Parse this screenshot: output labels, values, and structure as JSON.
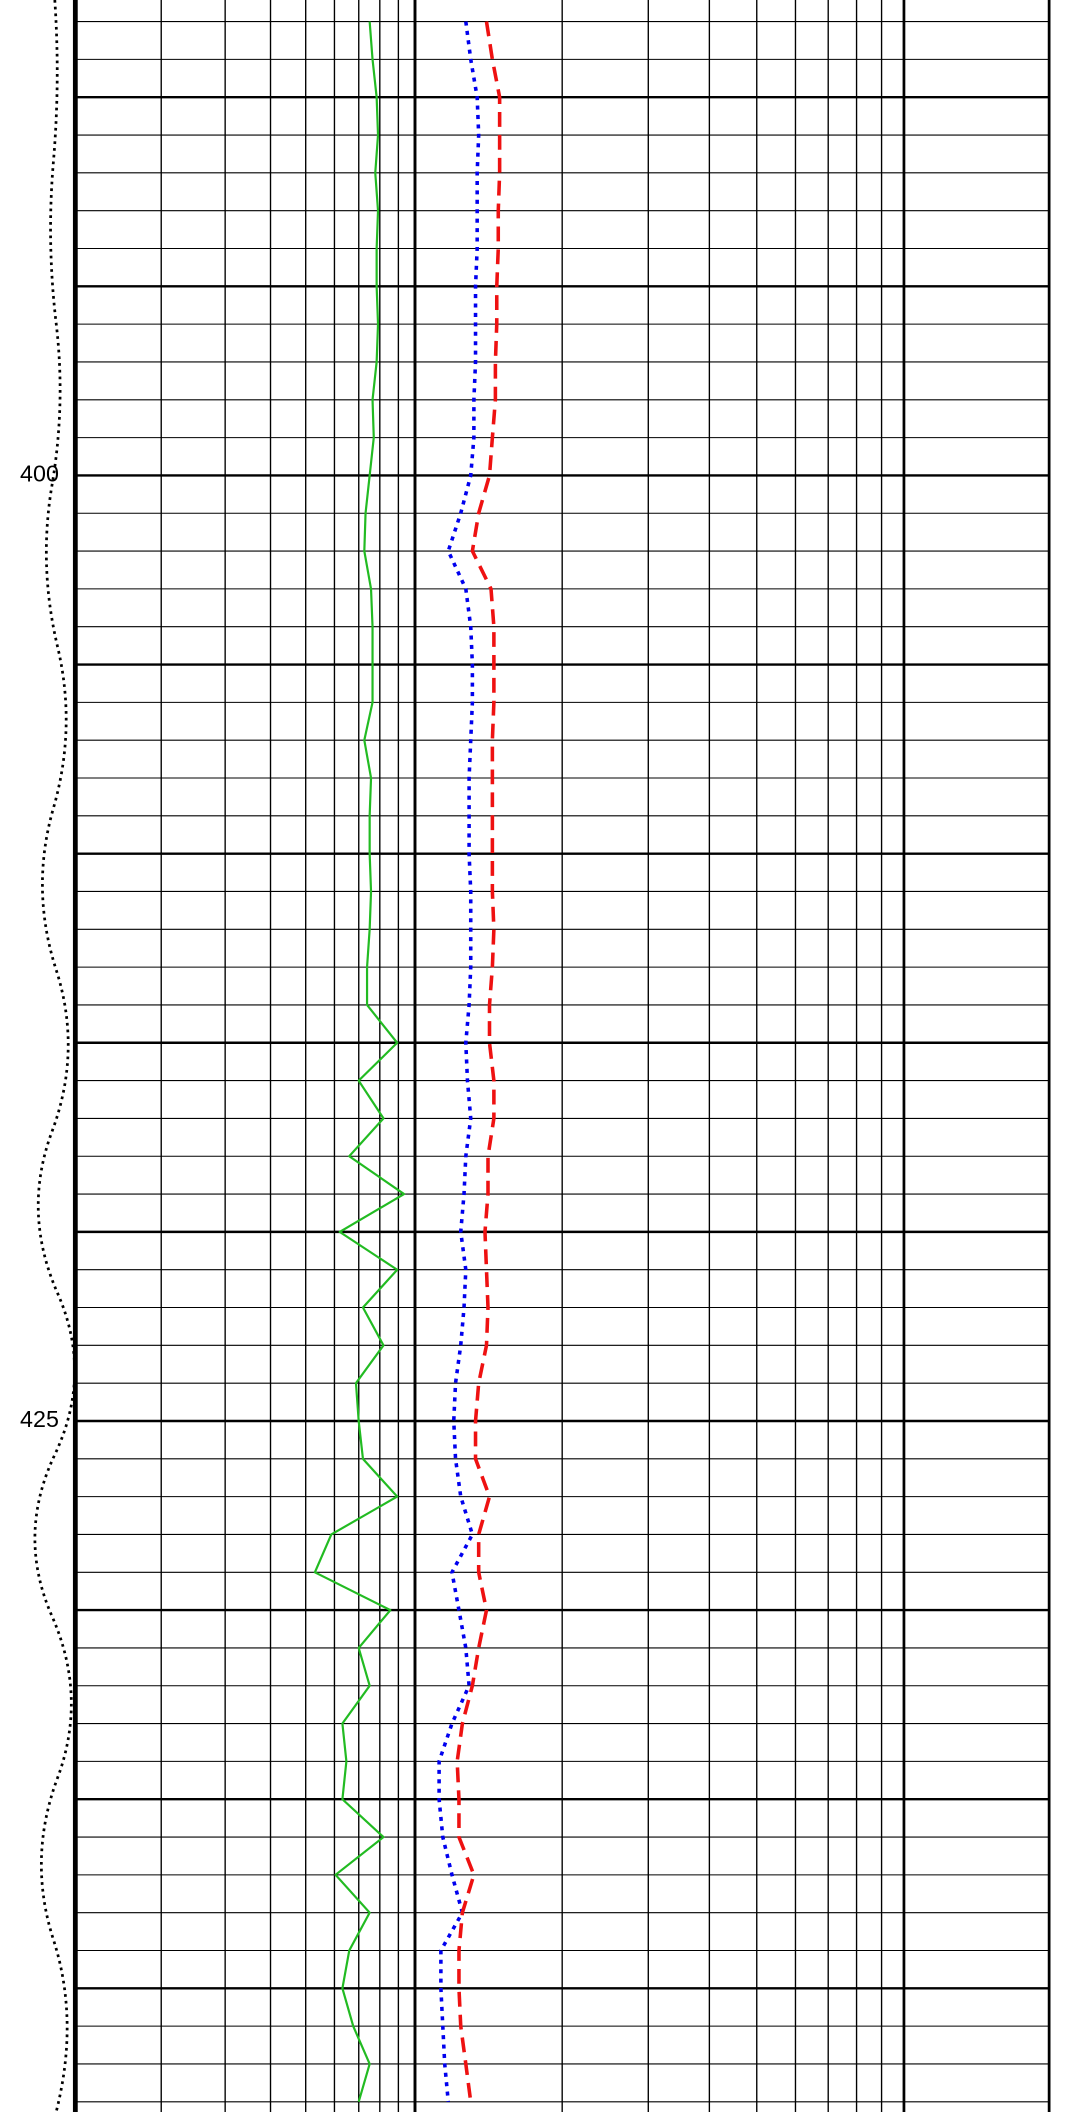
{
  "chart_data": {
    "type": "well-log",
    "ylim": [
      387.43,
      443.27
    ],
    "yticks": [
      400,
      425
    ],
    "ygrid_major": [
      390,
      395,
      400,
      405,
      410,
      415,
      420,
      425,
      430,
      435,
      440
    ],
    "ygrid_minor": [
      388,
      389,
      390,
      391,
      392,
      393,
      394,
      395,
      396,
      397,
      398,
      399,
      400,
      401,
      402,
      403,
      404,
      405,
      406,
      407,
      408,
      409,
      410,
      411,
      412,
      413,
      414,
      415,
      416,
      417,
      418,
      419,
      420,
      421,
      422,
      423,
      424,
      425,
      426,
      427,
      428,
      429,
      430,
      431,
      432,
      433,
      434,
      435,
      436,
      437,
      438,
      439,
      440,
      441,
      442,
      443
    ],
    "tracks": [
      {
        "xlim": [
          1.16,
          10
        ],
        "log": true,
        "xticks": [
          2,
          3,
          4,
          5,
          6,
          7,
          8,
          9,
          10
        ]
      },
      {
        "xlim": [
          1,
          10
        ],
        "log": true,
        "xticks": [
          1,
          2,
          3,
          4,
          5,
          6,
          7,
          8,
          9,
          10
        ]
      }
    ],
    "depth": [
      388,
      389,
      390,
      391,
      392,
      393,
      394,
      395,
      396,
      397,
      398,
      399,
      400,
      401,
      402,
      403,
      404,
      405,
      406,
      407,
      408,
      409,
      410,
      411,
      412,
      413,
      414,
      415,
      416,
      417,
      418,
      419,
      420,
      421,
      422,
      423,
      424,
      425,
      426,
      427,
      428,
      429,
      430,
      431,
      432,
      433,
      434,
      435,
      436,
      437,
      438,
      439,
      440,
      441,
      442,
      443
    ],
    "series": [
      {
        "track": 0,
        "color": "#22bb22",
        "style": "solid",
        "values": [
          7.5,
          7.64,
          7.84,
          7.91,
          7.77,
          7.91,
          7.84,
          7.84,
          7.91,
          7.84,
          7.64,
          7.7,
          7.5,
          7.31,
          7.25,
          7.57,
          7.64,
          7.64,
          7.64,
          7.25,
          7.57,
          7.5,
          7.5,
          7.57,
          7.5,
          7.38,
          7.38,
          8.93,
          7.0,
          8.19,
          6.59,
          9.33,
          6.2,
          8.93,
          7.19,
          8.19,
          6.88,
          7.0,
          7.19,
          8.93,
          5.88,
          5.3,
          8.55,
          7.0,
          7.5,
          6.31,
          6.47,
          6.31,
          8.19,
          6.04,
          7.5,
          6.59,
          6.31,
          6.76,
          7.5,
          7.0
        ]
      },
      {
        "track": 1,
        "color": "#0000ee",
        "style": "dotted",
        "values": [
          1.27,
          1.3,
          1.34,
          1.35,
          1.34,
          1.34,
          1.34,
          1.33,
          1.33,
          1.33,
          1.32,
          1.32,
          1.3,
          1.24,
          1.17,
          1.27,
          1.3,
          1.31,
          1.31,
          1.3,
          1.29,
          1.29,
          1.29,
          1.3,
          1.3,
          1.3,
          1.29,
          1.27,
          1.28,
          1.3,
          1.27,
          1.26,
          1.24,
          1.27,
          1.26,
          1.24,
          1.21,
          1.2,
          1.21,
          1.24,
          1.31,
          1.19,
          1.23,
          1.27,
          1.29,
          1.19,
          1.12,
          1.12,
          1.14,
          1.19,
          1.25,
          1.13,
          1.13,
          1.14,
          1.15,
          1.17
        ]
      },
      {
        "track": 1,
        "color": "#ee1111",
        "style": "dashed",
        "values": [
          1.4,
          1.44,
          1.49,
          1.49,
          1.49,
          1.48,
          1.48,
          1.47,
          1.47,
          1.46,
          1.46,
          1.44,
          1.42,
          1.35,
          1.31,
          1.43,
          1.45,
          1.45,
          1.45,
          1.44,
          1.44,
          1.44,
          1.44,
          1.44,
          1.45,
          1.44,
          1.42,
          1.42,
          1.45,
          1.45,
          1.41,
          1.41,
          1.39,
          1.4,
          1.41,
          1.4,
          1.35,
          1.33,
          1.33,
          1.42,
          1.35,
          1.35,
          1.4,
          1.35,
          1.31,
          1.25,
          1.22,
          1.23,
          1.23,
          1.32,
          1.25,
          1.23,
          1.23,
          1.24,
          1.27,
          1.3
        ]
      }
    ]
  }
}
